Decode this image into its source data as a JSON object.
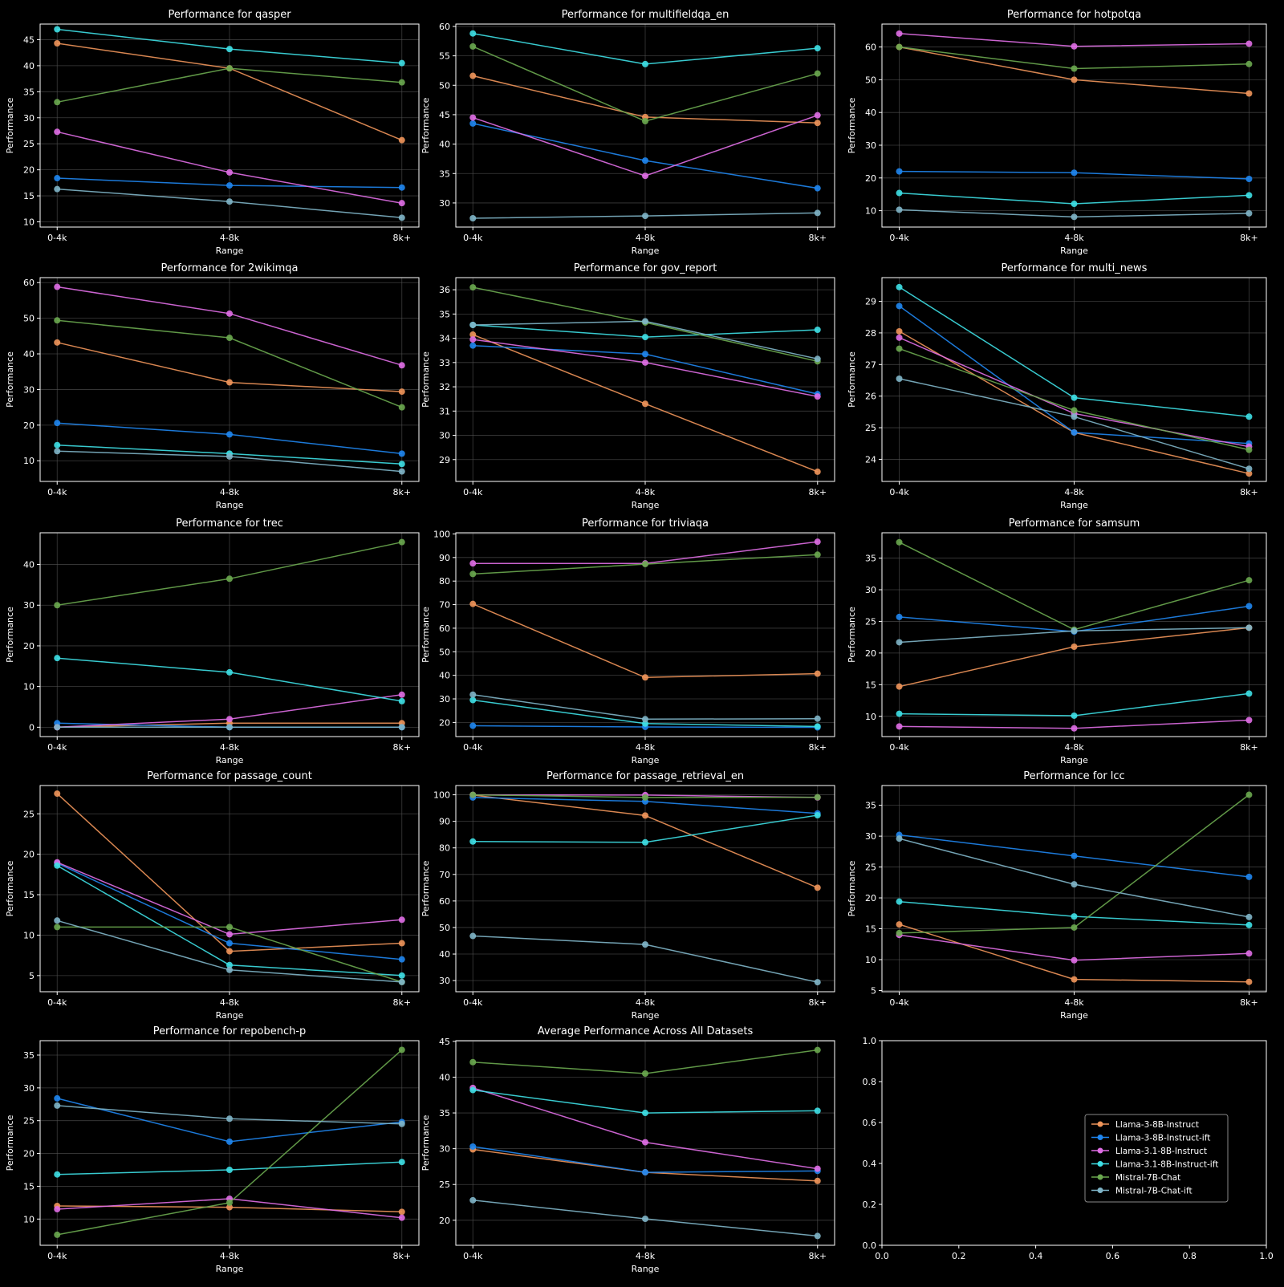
{
  "figure": {
    "background": "#000000",
    "text_color": "#ffffff",
    "grid_color": "#555555"
  },
  "series_meta": [
    {
      "name": "Llama-3-8B-Instruct",
      "color": "#f0955a"
    },
    {
      "name": "Llama-3-8B-Instruct-ift",
      "color": "#1f86f0"
    },
    {
      "name": "Llama-3.1-8B-Instruct",
      "color": "#e06ee6"
    },
    {
      "name": "Llama-3.1-8B-Instruct-ift",
      "color": "#3ee0e6"
    },
    {
      "name": "Mistral-7B-Chat",
      "color": "#6aa84f"
    },
    {
      "name": "Mistral-7B-Chat-ift",
      "color": "#7fb5c8"
    }
  ],
  "chart_data": [
    {
      "type": "line",
      "title": "Performance for qasper",
      "xlabel": "Range",
      "ylabel": "Performance",
      "categories": [
        "0-4k",
        "4-8k",
        "8k+"
      ],
      "ylim": [
        9,
        48
      ],
      "yticks": [
        10,
        15,
        20,
        25,
        30,
        35,
        40,
        45
      ],
      "series": [
        {
          "name": "Llama-3-8B-Instruct",
          "values": [
            44.3,
            39.5,
            25.7
          ]
        },
        {
          "name": "Llama-3-8B-Instruct-ift",
          "values": [
            18.4,
            17.0,
            16.6
          ]
        },
        {
          "name": "Llama-3.1-8B-Instruct",
          "values": [
            27.3,
            19.5,
            13.6
          ]
        },
        {
          "name": "Llama-3.1-8B-Instruct-ift",
          "values": [
            47.0,
            43.2,
            40.5
          ]
        },
        {
          "name": "Mistral-7B-Chat",
          "values": [
            33.0,
            39.5,
            36.8
          ]
        },
        {
          "name": "Mistral-7B-Chat-ift",
          "values": [
            16.3,
            13.9,
            10.8
          ]
        }
      ]
    },
    {
      "type": "line",
      "title": "Performance for multifieldqa_en",
      "xlabel": "Range",
      "ylabel": "Performance",
      "categories": [
        "0-4k",
        "4-8k",
        "8k+"
      ],
      "ylim": [
        25.9,
        60.4
      ],
      "yticks": [
        30,
        35,
        40,
        45,
        50,
        55,
        60
      ],
      "series": [
        {
          "name": "Llama-3-8B-Instruct",
          "values": [
            51.6,
            44.6,
            43.6
          ]
        },
        {
          "name": "Llama-3-8B-Instruct-ift",
          "values": [
            43.5,
            37.2,
            32.5
          ]
        },
        {
          "name": "Llama-3.1-8B-Instruct",
          "values": [
            44.5,
            34.6,
            44.9
          ]
        },
        {
          "name": "Llama-3.1-8B-Instruct-ift",
          "values": [
            58.8,
            53.6,
            56.3
          ]
        },
        {
          "name": "Mistral-7B-Chat",
          "values": [
            56.6,
            43.9,
            52.0
          ]
        },
        {
          "name": "Mistral-7B-Chat-ift",
          "values": [
            27.4,
            27.8,
            28.3
          ]
        }
      ]
    },
    {
      "type": "line",
      "title": "Performance for hotpotqa",
      "xlabel": "Range",
      "ylabel": "Performance",
      "categories": [
        "0-4k",
        "4-8k",
        "8k+"
      ],
      "ylim": [
        5,
        67
      ],
      "yticks": [
        10,
        20,
        30,
        40,
        50,
        60
      ],
      "series": [
        {
          "name": "Llama-3-8B-Instruct",
          "values": [
            60.0,
            50.0,
            45.8
          ]
        },
        {
          "name": "Llama-3-8B-Instruct-ift",
          "values": [
            22.0,
            21.6,
            19.7
          ]
        },
        {
          "name": "Llama-3.1-8B-Instruct",
          "values": [
            64.1,
            60.2,
            61.0
          ]
        },
        {
          "name": "Llama-3.1-8B-Instruct-ift",
          "values": [
            15.4,
            12.1,
            14.7
          ]
        },
        {
          "name": "Mistral-7B-Chat",
          "values": [
            60.0,
            53.4,
            54.8
          ]
        },
        {
          "name": "Mistral-7B-Chat-ift",
          "values": [
            10.3,
            8.1,
            9.2
          ]
        }
      ]
    },
    {
      "type": "line",
      "title": "Performance for 2wikimqa",
      "xlabel": "Range",
      "ylabel": "Performance",
      "categories": [
        "0-4k",
        "4-8k",
        "8k+"
      ],
      "ylim": [
        4.2,
        61.4
      ],
      "yticks": [
        10,
        20,
        30,
        40,
        50,
        60
      ],
      "series": [
        {
          "name": "Llama-3-8B-Instruct",
          "values": [
            43.2,
            32.0,
            29.4
          ]
        },
        {
          "name": "Llama-3-8B-Instruct-ift",
          "values": [
            20.6,
            17.4,
            12.0
          ]
        },
        {
          "name": "Llama-3.1-8B-Instruct",
          "values": [
            58.8,
            51.3,
            36.8
          ]
        },
        {
          "name": "Llama-3.1-8B-Instruct-ift",
          "values": [
            14.4,
            12.0,
            9.1
          ]
        },
        {
          "name": "Mistral-7B-Chat",
          "values": [
            49.4,
            44.5,
            25.0
          ]
        },
        {
          "name": "Mistral-7B-Chat-ift",
          "values": [
            12.7,
            11.2,
            7.0
          ]
        }
      ]
    },
    {
      "type": "line",
      "title": "Performance for gov_report",
      "xlabel": "Range",
      "ylabel": "Performance",
      "categories": [
        "0-4k",
        "4-8k",
        "8k+"
      ],
      "ylim": [
        28.1,
        36.5
      ],
      "yticks": [
        29,
        30,
        31,
        32,
        33,
        34,
        35,
        36
      ],
      "series": [
        {
          "name": "Llama-3-8B-Instruct",
          "values": [
            34.15,
            31.3,
            28.5
          ]
        },
        {
          "name": "Llama-3-8B-Instruct-ift",
          "values": [
            33.7,
            33.35,
            31.7
          ]
        },
        {
          "name": "Llama-3.1-8B-Instruct",
          "values": [
            33.95,
            33.0,
            31.6
          ]
        },
        {
          "name": "Llama-3.1-8B-Instruct-ift",
          "values": [
            34.55,
            34.05,
            34.35
          ]
        },
        {
          "name": "Mistral-7B-Chat",
          "values": [
            36.1,
            34.65,
            33.05
          ]
        },
        {
          "name": "Mistral-7B-Chat-ift",
          "values": [
            34.55,
            34.7,
            33.15
          ]
        }
      ]
    },
    {
      "type": "line",
      "title": "Performance for multi_news",
      "xlabel": "Range",
      "ylabel": "Performance",
      "categories": [
        "0-4k",
        "4-8k",
        "8k+"
      ],
      "ylim": [
        23.3,
        29.75
      ],
      "yticks": [
        24,
        25,
        26,
        27,
        28,
        29
      ],
      "series": [
        {
          "name": "Llama-3-8B-Instruct",
          "values": [
            28.05,
            24.85,
            23.55
          ]
        },
        {
          "name": "Llama-3-8B-Instruct-ift",
          "values": [
            28.85,
            24.85,
            24.5
          ]
        },
        {
          "name": "Llama-3.1-8B-Instruct",
          "values": [
            27.85,
            25.45,
            24.4
          ]
        },
        {
          "name": "Llama-3.1-8B-Instruct-ift",
          "values": [
            29.45,
            25.95,
            25.35
          ]
        },
        {
          "name": "Mistral-7B-Chat",
          "values": [
            27.5,
            25.55,
            24.3
          ]
        },
        {
          "name": "Mistral-7B-Chat-ift",
          "values": [
            26.55,
            25.35,
            23.7
          ]
        }
      ]
    },
    {
      "type": "line",
      "title": "Performance for trec",
      "xlabel": "Range",
      "ylabel": "Performance",
      "categories": [
        "0-4k",
        "4-8k",
        "8k+"
      ],
      "ylim": [
        -2.3,
        47.8
      ],
      "yticks": [
        0,
        10,
        20,
        30,
        40
      ],
      "series": [
        {
          "name": "Llama-3-8B-Instruct",
          "values": [
            0.0,
            1.0,
            1.0
          ]
        },
        {
          "name": "Llama-3-8B-Instruct-ift",
          "values": [
            1.0,
            0.0,
            0.0
          ]
        },
        {
          "name": "Llama-3.1-8B-Instruct",
          "values": [
            0.0,
            2.0,
            8.0
          ]
        },
        {
          "name": "Llama-3.1-8B-Instruct-ift",
          "values": [
            17.0,
            13.5,
            6.4
          ]
        },
        {
          "name": "Mistral-7B-Chat",
          "values": [
            30.0,
            36.5,
            45.5
          ]
        },
        {
          "name": "Mistral-7B-Chat-ift",
          "values": [
            0.0,
            0.0,
            0.0
          ]
        }
      ]
    },
    {
      "type": "line",
      "title": "Performance for triviaqa",
      "xlabel": "Range",
      "ylabel": "Performance",
      "categories": [
        "0-4k",
        "4-8k",
        "8k+"
      ],
      "ylim": [
        14,
        100.5
      ],
      "yticks": [
        20,
        30,
        40,
        50,
        60,
        70,
        80,
        90,
        100
      ],
      "series": [
        {
          "name": "Llama-3-8B-Instruct",
          "values": [
            70.3,
            39.1,
            40.7
          ]
        },
        {
          "name": "Llama-3-8B-Instruct-ift",
          "values": [
            18.6,
            18.1,
            17.9
          ]
        },
        {
          "name": "Llama-3.1-8B-Instruct",
          "values": [
            87.5,
            87.5,
            96.7
          ]
        },
        {
          "name": "Llama-3.1-8B-Instruct-ift",
          "values": [
            29.5,
            19.5,
            18.3
          ]
        },
        {
          "name": "Mistral-7B-Chat",
          "values": [
            83.0,
            87.2,
            91.2
          ]
        },
        {
          "name": "Mistral-7B-Chat-ift",
          "values": [
            31.8,
            21.4,
            21.6
          ]
        }
      ]
    },
    {
      "type": "line",
      "title": "Performance for samsum",
      "xlabel": "Range",
      "ylabel": "Performance",
      "categories": [
        "0-4k",
        "4-8k",
        "8k+"
      ],
      "ylim": [
        6.8,
        39
      ],
      "yticks": [
        10,
        15,
        20,
        25,
        30,
        35
      ],
      "series": [
        {
          "name": "Llama-3-8B-Instruct",
          "values": [
            14.7,
            21.0,
            24.0
          ]
        },
        {
          "name": "Llama-3-8B-Instruct-ift",
          "values": [
            25.7,
            23.4,
            27.4
          ]
        },
        {
          "name": "Llama-3.1-8B-Instruct",
          "values": [
            8.4,
            8.1,
            9.4
          ]
        },
        {
          "name": "Llama-3.1-8B-Instruct-ift",
          "values": [
            10.4,
            10.1,
            13.6
          ]
        },
        {
          "name": "Mistral-7B-Chat",
          "values": [
            37.5,
            23.7,
            31.5
          ]
        },
        {
          "name": "Mistral-7B-Chat-ift",
          "values": [
            21.7,
            23.5,
            24.0
          ]
        }
      ]
    },
    {
      "type": "line",
      "title": "Performance for passage_count",
      "xlabel": "Range",
      "ylabel": "Performance",
      "categories": [
        "0-4k",
        "4-8k",
        "8k+"
      ],
      "ylim": [
        3,
        28.5
      ],
      "yticks": [
        5,
        10,
        15,
        20,
        25
      ],
      "series": [
        {
          "name": "Llama-3-8B-Instruct",
          "values": [
            27.5,
            8.0,
            9.0
          ]
        },
        {
          "name": "Llama-3-8B-Instruct-ift",
          "values": [
            18.9,
            9.0,
            7.0
          ]
        },
        {
          "name": "Llama-3.1-8B-Instruct",
          "values": [
            19.0,
            10.1,
            11.9
          ]
        },
        {
          "name": "Llama-3.1-8B-Instruct-ift",
          "values": [
            18.6,
            6.3,
            5.0
          ]
        },
        {
          "name": "Mistral-7B-Chat",
          "values": [
            11.0,
            11.0,
            4.2
          ]
        },
        {
          "name": "Mistral-7B-Chat-ift",
          "values": [
            11.8,
            5.7,
            4.2
          ]
        }
      ]
    },
    {
      "type": "line",
      "title": "Performance for passage_retrieval_en",
      "xlabel": "Range",
      "ylabel": "Performance",
      "categories": [
        "0-4k",
        "4-8k",
        "8k+"
      ],
      "ylim": [
        25.8,
        103.5
      ],
      "yticks": [
        30,
        40,
        50,
        60,
        70,
        80,
        90,
        100
      ],
      "series": [
        {
          "name": "Llama-3-8B-Instruct",
          "values": [
            99.9,
            92.2,
            65.0
          ]
        },
        {
          "name": "Llama-3-8B-Instruct-ift",
          "values": [
            99.0,
            97.5,
            93.0
          ]
        },
        {
          "name": "Llama-3.1-8B-Instruct",
          "values": [
            100.0,
            99.9,
            99.0
          ]
        },
        {
          "name": "Llama-3.1-8B-Instruct-ift",
          "values": [
            82.4,
            82.1,
            92.3
          ]
        },
        {
          "name": "Mistral-7B-Chat",
          "values": [
            100.0,
            99.0,
            99.1
          ]
        },
        {
          "name": "Mistral-7B-Chat-ift",
          "values": [
            46.8,
            43.6,
            29.4
          ]
        }
      ]
    },
    {
      "type": "line",
      "title": "Performance for lcc",
      "xlabel": "Range",
      "ylabel": "Performance",
      "categories": [
        "0-4k",
        "4-8k",
        "8k+"
      ],
      "ylim": [
        4.8,
        38.2
      ],
      "yticks": [
        5,
        10,
        15,
        20,
        25,
        30,
        35
      ],
      "series": [
        {
          "name": "Llama-3-8B-Instruct",
          "values": [
            15.7,
            6.8,
            6.4
          ]
        },
        {
          "name": "Llama-3-8B-Instruct-ift",
          "values": [
            30.2,
            26.8,
            23.4
          ]
        },
        {
          "name": "Llama-3.1-8B-Instruct",
          "values": [
            14.0,
            9.9,
            11.0
          ]
        },
        {
          "name": "Llama-3.1-8B-Instruct-ift",
          "values": [
            19.4,
            17.0,
            15.6
          ]
        },
        {
          "name": "Mistral-7B-Chat",
          "values": [
            14.3,
            15.2,
            36.7
          ]
        },
        {
          "name": "Mistral-7B-Chat-ift",
          "values": [
            29.6,
            22.2,
            16.9
          ]
        }
      ]
    },
    {
      "type": "line",
      "title": "Performance for repobench-p",
      "xlabel": "Range",
      "ylabel": "Performance",
      "categories": [
        "0-4k",
        "4-8k",
        "8k+"
      ],
      "ylim": [
        6,
        37.2
      ],
      "yticks": [
        10,
        15,
        20,
        25,
        30,
        35
      ],
      "series": [
        {
          "name": "Llama-3-8B-Instruct",
          "values": [
            12.0,
            11.8,
            11.1
          ]
        },
        {
          "name": "Llama-3-8B-Instruct-ift",
          "values": [
            28.4,
            21.8,
            24.8
          ]
        },
        {
          "name": "Llama-3.1-8B-Instruct",
          "values": [
            11.5,
            13.1,
            10.2
          ]
        },
        {
          "name": "Llama-3.1-8B-Instruct-ift",
          "values": [
            16.8,
            17.5,
            18.7
          ]
        },
        {
          "name": "Mistral-7B-Chat",
          "values": [
            7.6,
            12.5,
            35.8
          ]
        },
        {
          "name": "Mistral-7B-Chat-ift",
          "values": [
            27.3,
            25.3,
            24.5
          ]
        }
      ]
    },
    {
      "type": "line",
      "title": "Average Performance Across All Datasets",
      "xlabel": "Range",
      "ylabel": "Performance",
      "categories": [
        "0-4k",
        "4-8k",
        "8k+"
      ],
      "ylim": [
        16.5,
        45.1
      ],
      "yticks": [
        20,
        25,
        30,
        35,
        40,
        45
      ],
      "series": [
        {
          "name": "Llama-3-8B-Instruct",
          "values": [
            29.9,
            26.7,
            25.5
          ]
        },
        {
          "name": "Llama-3-8B-Instruct-ift",
          "values": [
            30.3,
            26.7,
            26.9
          ]
        },
        {
          "name": "Llama-3.1-8B-Instruct",
          "values": [
            38.5,
            30.9,
            27.2
          ]
        },
        {
          "name": "Llama-3.1-8B-Instruct-ift",
          "values": [
            38.2,
            35.0,
            35.3
          ]
        },
        {
          "name": "Mistral-7B-Chat",
          "values": [
            42.1,
            40.5,
            43.8
          ]
        },
        {
          "name": "Mistral-7B-Chat-ift",
          "values": [
            22.8,
            20.2,
            17.8
          ]
        }
      ]
    },
    {
      "type": "legend-only",
      "title": "",
      "xlim": [
        0,
        1
      ],
      "ylim": [
        0,
        1
      ],
      "xticks": [
        "0.0",
        "0.2",
        "0.4",
        "0.6",
        "0.8",
        "1.0"
      ],
      "yticks": [
        "0.0",
        "0.2",
        "0.4",
        "0.6",
        "0.8",
        "1.0"
      ],
      "legend_placement": "center-right",
      "legend": [
        "Llama-3-8B-Instruct",
        "Llama-3-8B-Instruct-ift",
        "Llama-3.1-8B-Instruct",
        "Llama-3.1-8B-Instruct-ift",
        "Mistral-7B-Chat",
        "Mistral-7B-Chat-ift"
      ]
    }
  ]
}
